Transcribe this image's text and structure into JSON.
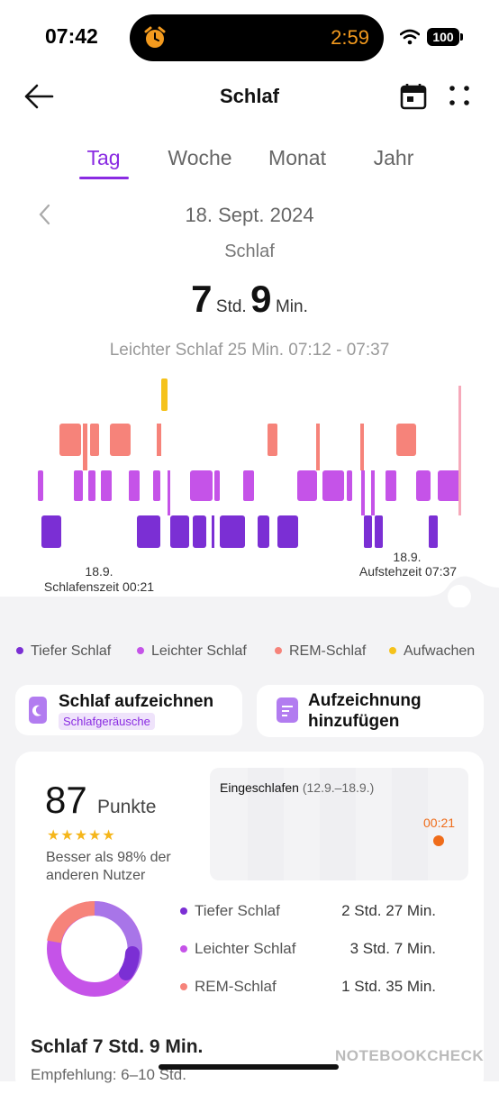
{
  "status": {
    "time": "07:42",
    "island_time": "2:59",
    "battery": "100"
  },
  "header": {
    "title": "Schlaf"
  },
  "tabs": [
    {
      "label": "Tag",
      "active": true
    },
    {
      "label": "Woche",
      "active": false
    },
    {
      "label": "Monat",
      "active": false
    },
    {
      "label": "Jahr",
      "active": false
    }
  ],
  "summary": {
    "date": "18. Sept. 2024",
    "label": "Schlaf",
    "hours": "7",
    "hours_unit": "Std.",
    "minutes": "9",
    "minutes_unit": "Min.",
    "detail": "Leichter Schlaf 25 Min. 07:12 - 07:37"
  },
  "chart_labels": {
    "start_date": "18.9.",
    "start_text": "Schlafenszeit 00:21",
    "end_date": "18.9.",
    "end_text": "Aufstehzeit 07:37"
  },
  "colors": {
    "deep": "#7b2fd4",
    "light": "#c553e8",
    "rem": "#f6837a",
    "awake": "#f5c21b",
    "accent": "#8a2be2"
  },
  "legend": [
    {
      "label": "Tiefer Schlaf",
      "color": "#7b2fd4"
    },
    {
      "label": "Leichter Schlaf",
      "color": "#c553e8"
    },
    {
      "label": "REM-Schlaf",
      "color": "#f6837a"
    },
    {
      "label": "Aufwachen",
      "color": "#f5c21b"
    }
  ],
  "actions": {
    "record_title": "Schlaf aufzeichnen",
    "record_tag": "Schlafgeräusche",
    "add_line1": "Aufzeichnung",
    "add_line2": "hinzufügen"
  },
  "score": {
    "value": "87",
    "unit": "Punkte",
    "stars": "★★★★★",
    "rating": 4.5,
    "better": "Besser als 98% der anderen Nutzer"
  },
  "mini_chart": {
    "title": "Eingeschlafen",
    "range": "(12.9.–18.9.)",
    "value": "00:21"
  },
  "stages": [
    {
      "label": "Tiefer Schlaf",
      "value": "2 Std. 27 Min.",
      "color": "#7b2fd4"
    },
    {
      "label": "Leichter Schlaf",
      "value": "3 Std. 7 Min.",
      "color": "#c553e8"
    },
    {
      "label": "REM-Schlaf",
      "value": "1 Std. 35 Min.",
      "color": "#f6837a"
    }
  ],
  "bottom": {
    "title": "Schlaf 7 Std. 9 Min.",
    "subtitle": "Empfehlung: 6–10 Std."
  },
  "watermark": "NOTEBOOKCHECK"
}
